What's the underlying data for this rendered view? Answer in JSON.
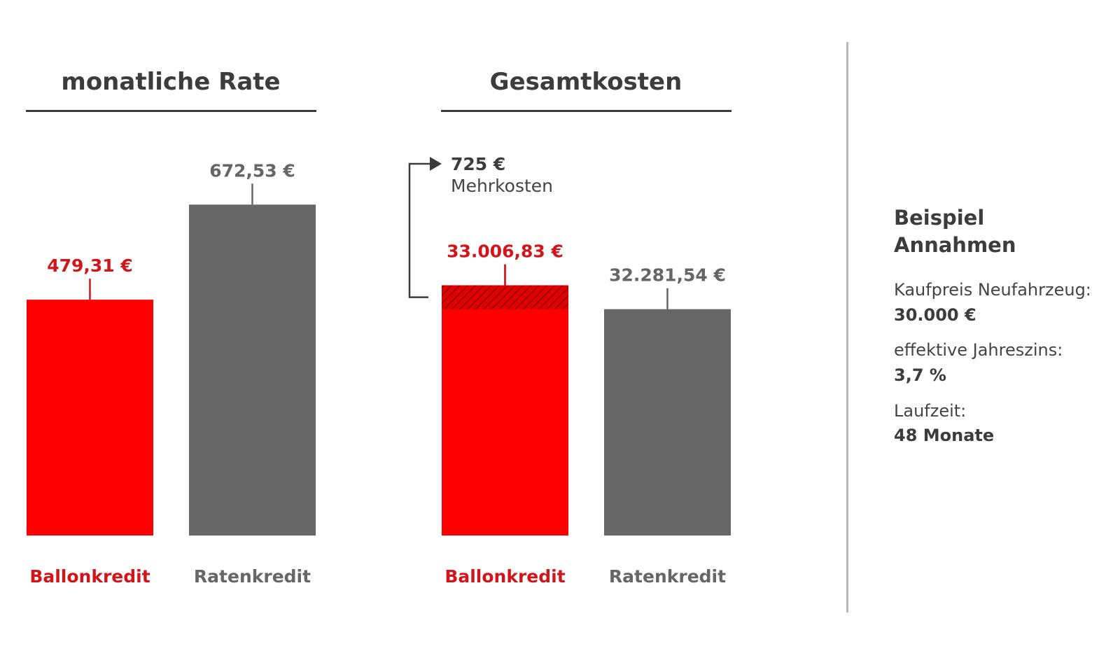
{
  "chart_data": [
    {
      "type": "bar",
      "title": "monatliche Rate",
      "categories": [
        "Ballonkredit",
        "Ratenkredit"
      ],
      "values": [
        479.31,
        672.53
      ],
      "value_labels": [
        "479,31 €",
        "672,53 €"
      ],
      "colors": [
        "#ff0000",
        "#666666"
      ],
      "label_colors": [
        "#d0161b",
        "#666666"
      ],
      "ylim": [
        0,
        700
      ],
      "grid": false,
      "axis_visible": false
    },
    {
      "type": "bar",
      "title": "Gesamtkosten",
      "categories": [
        "Ballonkredit",
        "Ratenkredit"
      ],
      "values": [
        33006.83,
        32281.54
      ],
      "value_labels": [
        "33.006,83 €",
        "32.281,54 €"
      ],
      "colors": [
        "#ff0000",
        "#666666"
      ],
      "label_colors": [
        "#d0161b",
        "#666666"
      ],
      "ylim": [
        25400,
        36000
      ],
      "grid": false,
      "axis_visible": false,
      "annotation": {
        "value": "725 €",
        "label": "Mehrkosten",
        "hatch_color": "#a00000"
      }
    }
  ],
  "sidebar": {
    "title_line1": "Beispiel",
    "title_line2": "Annahmen",
    "items": [
      {
        "label": "Kaufpreis Neufahrzeug:",
        "value": "30.000 €"
      },
      {
        "label": "effektive Jahreszins:",
        "value": "3,7 %"
      },
      {
        "label": "Laufzeit:",
        "value": "48 Monate"
      }
    ]
  }
}
